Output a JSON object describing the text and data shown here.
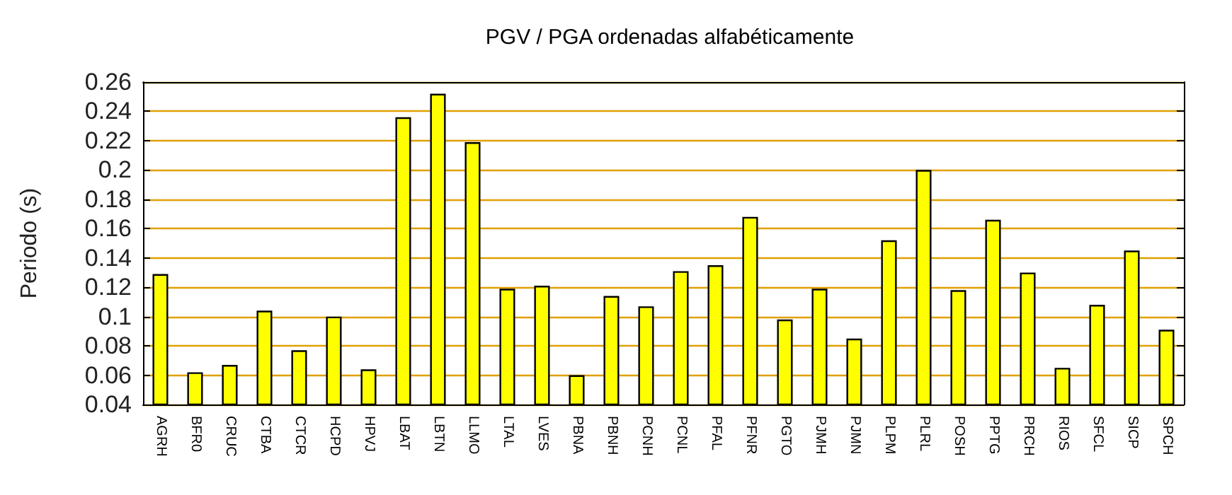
{
  "chart_data": {
    "type": "bar",
    "title": "PGV / PGA ordenadas alfabéticamente",
    "ylabel": "Periodo (s)",
    "categories": [
      "AGRH",
      "BFR0",
      "CRUC",
      "CTBA",
      "CTCR",
      "HCPD",
      "HPVJ",
      "LBAT",
      "LBTN",
      "LLMO",
      "LTAL",
      "LVES",
      "PBNA",
      "PBNH",
      "PCNH",
      "PCNL",
      "PFAL",
      "PFNR",
      "PGTO",
      "PJMH",
      "PJMN",
      "PLPM",
      "PLRL",
      "POSH",
      "PPTG",
      "PRCH",
      "RIOS",
      "SFCL",
      "SICP",
      "SPCH"
    ],
    "values": [
      0.129,
      0.062,
      0.067,
      0.104,
      0.077,
      0.1,
      0.064,
      0.236,
      0.252,
      0.219,
      0.119,
      0.121,
      0.06,
      0.114,
      0.107,
      0.131,
      0.135,
      0.168,
      0.098,
      0.119,
      0.085,
      0.152,
      0.2,
      0.118,
      0.166,
      0.13,
      0.065,
      0.108,
      0.145,
      0.091
    ],
    "color": "#ffff00",
    "ylim": [
      0.04,
      0.26
    ],
    "yticks": [
      0.04,
      0.06,
      0.08,
      0.1,
      0.12,
      0.14,
      0.16,
      0.18,
      0.2,
      0.22,
      0.24,
      0.26
    ],
    "grid": "y"
  }
}
